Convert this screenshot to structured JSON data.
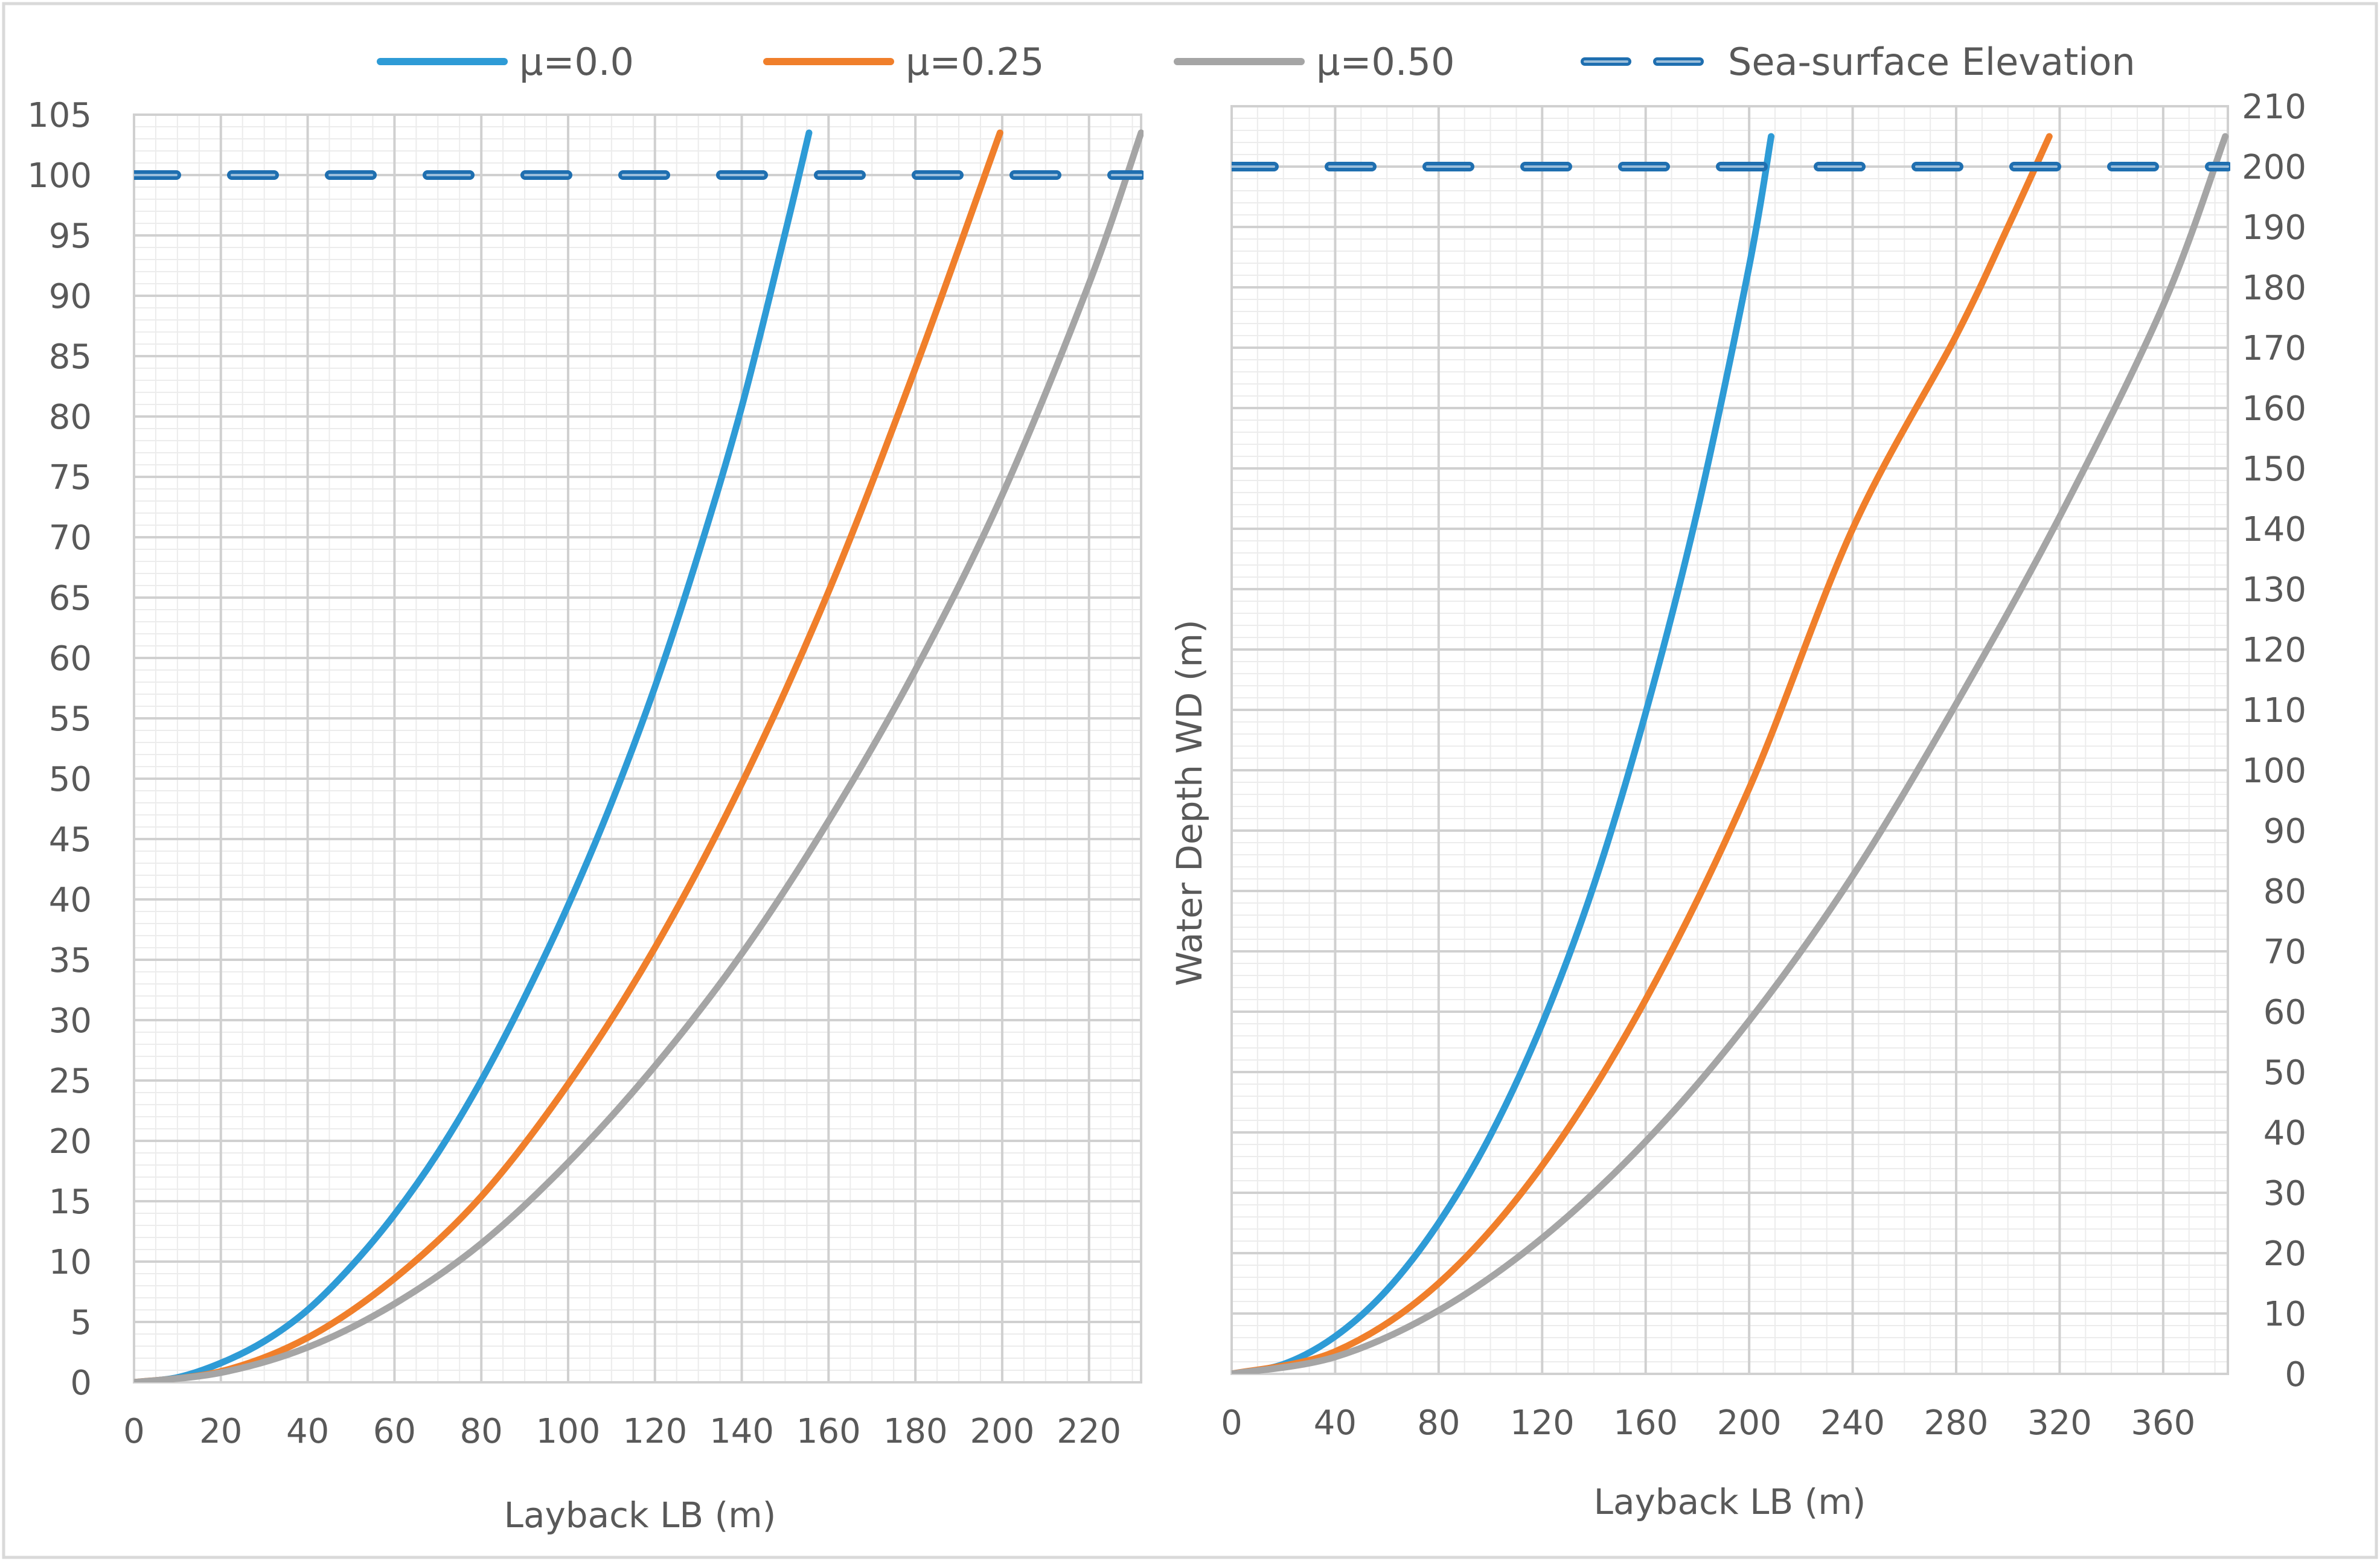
{
  "chart_data": [
    {
      "type": "line",
      "title": "",
      "xlabel": "Layback LB (m)",
      "ylabel": "",
      "xlim": [
        0,
        232
      ],
      "ylim": [
        0,
        105
      ],
      "x_ticks": [
        0,
        20,
        40,
        60,
        80,
        100,
        120,
        140,
        160,
        180,
        200,
        220
      ],
      "y_ticks": [
        0,
        5,
        10,
        15,
        20,
        25,
        30,
        35,
        40,
        45,
        50,
        55,
        60,
        65,
        70,
        75,
        80,
        85,
        90,
        95,
        100,
        105
      ],
      "grid": true,
      "legend": "top",
      "series": [
        {
          "name": "μ=0.0",
          "color": "#2E9BD6",
          "dash": false,
          "x": [
            0,
            10,
            20,
            30,
            40,
            50,
            60,
            70,
            80,
            90,
            100,
            110,
            120,
            130,
            140,
            150,
            155.5
          ],
          "y": [
            0,
            0.4,
            1.6,
            3.4,
            6.0,
            9.6,
            13.9,
            19.0,
            25.0,
            31.9,
            39.5,
            48.0,
            57.6,
            68.6,
            80.8,
            95.2,
            103.5
          ]
        },
        {
          "name": "μ=0.25",
          "color": "#F07F2B",
          "dash": false,
          "x": [
            0,
            20,
            40,
            60,
            80,
            100,
            120,
            140,
            160,
            180,
            199.5
          ],
          "y": [
            0,
            0.9,
            3.7,
            8.6,
            15.4,
            24.7,
            36.0,
            49.6,
            65.5,
            84.0,
            103.5
          ]
        },
        {
          "name": "μ=0.50",
          "color": "#A5A5A5",
          "dash": false,
          "x": [
            0,
            20,
            40,
            60,
            80,
            100,
            120,
            140,
            160,
            180,
            200,
            220,
            232
          ],
          "y": [
            0,
            0.8,
            2.9,
            6.5,
            11.5,
            18.2,
            26.2,
            35.5,
            46.5,
            59.0,
            73.5,
            91.0,
            103.5
          ]
        },
        {
          "name": "Sea-surface Elevation",
          "color": "#1F6FB0",
          "dash": true,
          "x": [
            0,
            232
          ],
          "y": [
            100,
            100
          ]
        }
      ]
    },
    {
      "type": "line",
      "title": "",
      "xlabel": "Layback LB (m)",
      "ylabel": "Water Depth WD (m)",
      "xlim": [
        0,
        385
      ],
      "ylim": [
        0,
        210
      ],
      "x_ticks": [
        0,
        40,
        80,
        120,
        160,
        200,
        240,
        280,
        320,
        360
      ],
      "y_ticks": [
        0,
        10,
        20,
        30,
        40,
        50,
        60,
        70,
        80,
        90,
        100,
        110,
        120,
        130,
        140,
        150,
        160,
        170,
        180,
        190,
        200,
        210
      ],
      "grid": true,
      "legend": "top",
      "series": [
        {
          "name": "μ=0.0",
          "color": "#2E9BD6",
          "dash": false,
          "x": [
            0,
            20,
            40,
            60,
            80,
            100,
            120,
            140,
            160,
            180,
            200,
            208.5
          ],
          "y": [
            0,
            1.6,
            6.2,
            13.9,
            25.0,
            39.5,
            58.0,
            81.0,
            109.5,
            143.0,
            183.5,
            205.0
          ]
        },
        {
          "name": "μ=0.25",
          "color": "#F07F2B",
          "dash": false,
          "x": [
            0,
            40,
            80,
            120,
            160,
            200,
            240,
            280,
            300,
            316
          ],
          "y": [
            0,
            3.7,
            15.0,
            34.5,
            62.0,
            97.0,
            140.0,
            172.0,
            190.0,
            205.0
          ]
        },
        {
          "name": "μ=0.50",
          "color": "#A5A5A5",
          "dash": false,
          "x": [
            0,
            40,
            80,
            120,
            160,
            200,
            240,
            280,
            320,
            360,
            384
          ],
          "y": [
            0,
            2.8,
            10.5,
            22.5,
            38.5,
            58.5,
            82.5,
            111.0,
            142.0,
            177.0,
            205.0
          ]
        },
        {
          "name": "Sea-surface Elevation",
          "color": "#1F6FB0",
          "dash": true,
          "x": [
            0,
            385
          ],
          "y": [
            200,
            200
          ]
        }
      ]
    }
  ],
  "legend": {
    "items": [
      {
        "label": "μ=0.0",
        "color": "#2E9BD6",
        "dash": false
      },
      {
        "label": "μ=0.25",
        "color": "#F07F2B",
        "dash": false
      },
      {
        "label": "μ=0.50",
        "color": "#A5A5A5",
        "dash": false
      },
      {
        "label": "Sea-surface Elevation",
        "color": "#1F6FB0",
        "dash": true
      }
    ]
  },
  "colors": {
    "grid_major": "#D0D0D0",
    "grid_minor": "#ECECEC",
    "border": "#D9D9D9",
    "text": "#595959"
  }
}
